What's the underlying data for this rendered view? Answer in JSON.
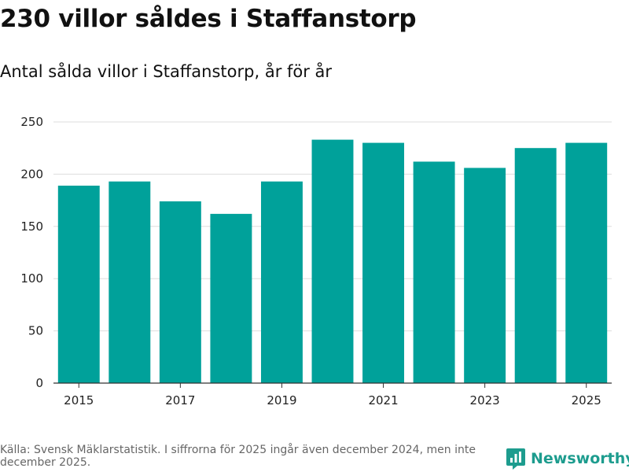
{
  "title": "230 villor såldes i Staffanstorp",
  "subtitle": "Antal sålda villor i Staffanstorp, år för år",
  "source": "Källa: Svensk Mäklarstatistik. I siffrorna för 2025 ingår även december 2024, men inte december 2025.",
  "brand": {
    "name": "Newsworthy",
    "icon": "bar-chart-speech-bubble-icon",
    "color": "#1d9c8e"
  },
  "chart_data": {
    "type": "bar",
    "categories": [
      2015,
      2016,
      2017,
      2018,
      2019,
      2020,
      2021,
      2022,
      2023,
      2024,
      2025
    ],
    "values": [
      189,
      193,
      174,
      162,
      193,
      233,
      230,
      212,
      206,
      225,
      230
    ],
    "title": "230 villor såldes i Staffanstorp",
    "subtitle": "Antal sålda villor i Staffanstorp, år för år",
    "xlabel": "",
    "ylabel": "",
    "ylim": [
      0,
      250
    ],
    "yticks": [
      0,
      50,
      100,
      150,
      200,
      250
    ],
    "xticks": [
      2015,
      2017,
      2019,
      2021,
      2023,
      2025
    ],
    "grid": true,
    "legend": "none",
    "bar_color": "#00a19a",
    "grid_color": "#dddddd"
  }
}
